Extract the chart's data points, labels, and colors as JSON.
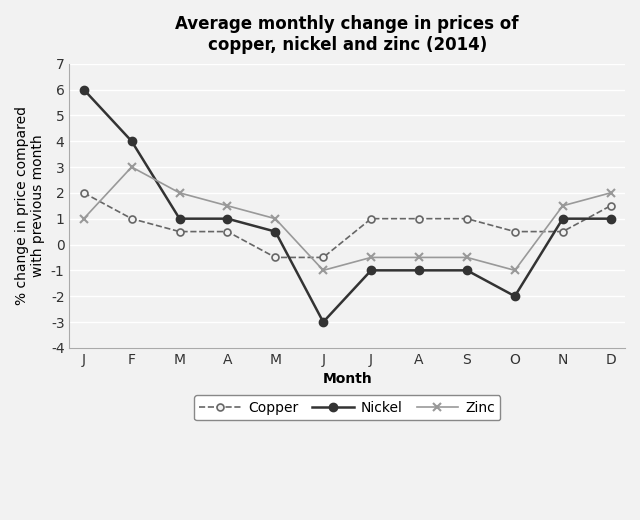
{
  "title": "Average monthly change in prices of\ncopper, nickel and zinc (2014)",
  "xlabel": "Month",
  "ylabel": "% change in price compared\nwith previous month",
  "months": [
    "J",
    "F",
    "M",
    "A",
    "M",
    "J",
    "J",
    "A",
    "S",
    "O",
    "N",
    "D"
  ],
  "copper": [
    2,
    1,
    0.5,
    0.5,
    -0.5,
    -0.5,
    1,
    1,
    1,
    0.5,
    0.5,
    1.5
  ],
  "nickel": [
    6,
    4,
    1,
    1,
    0.5,
    -3,
    -1,
    -1,
    -1,
    -2,
    1,
    1
  ],
  "zinc": [
    1,
    3,
    2,
    1.5,
    1,
    -1,
    -0.5,
    -0.5,
    -0.5,
    -1,
    1.5,
    2
  ],
  "ylim": [
    -4,
    7
  ],
  "yticks": [
    -4,
    -3,
    -2,
    -1,
    0,
    1,
    2,
    3,
    4,
    5,
    6,
    7
  ],
  "background_color": "#f2f2f2",
  "plot_bg_color": "#f2f2f2",
  "grid_color": "#ffffff",
  "copper_color": "#666666",
  "nickel_color": "#333333",
  "zinc_color": "#999999",
  "title_fontsize": 12,
  "label_fontsize": 10,
  "tick_fontsize": 10,
  "legend_fontsize": 10
}
